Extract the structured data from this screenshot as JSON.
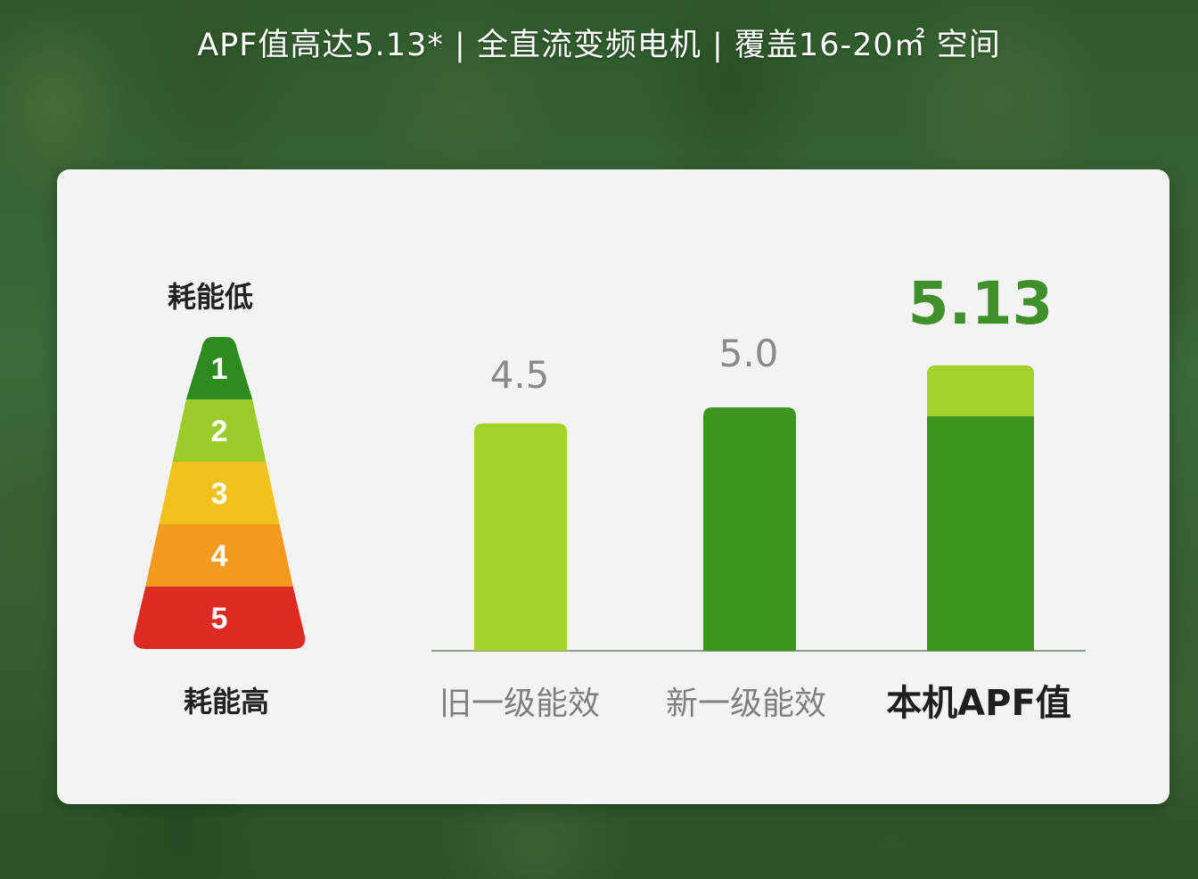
{
  "headline": "APF值高达5.13* | 全直流变频电机 | 覆盖16-20㎡ 空间",
  "pyramid": {
    "top_label": "耗能低",
    "bottom_label": "耗能高",
    "levels": [
      {
        "label": "1",
        "color": "#2e8b1e"
      },
      {
        "label": "2",
        "color": "#9ccc2a"
      },
      {
        "label": "3",
        "color": "#f0c21b"
      },
      {
        "label": "4",
        "color": "#f39a1e"
      },
      {
        "label": "5",
        "color": "#dd2a22"
      }
    ]
  },
  "chart_data": {
    "type": "bar",
    "categories": [
      "旧一级能效",
      "新一级能效",
      "本机APF值"
    ],
    "values": [
      4.5,
      5.0,
      5.13
    ],
    "value_labels": [
      "4.5",
      "5.0",
      "5.13"
    ],
    "bar_colors": [
      "#a4d12c",
      "#3d941f",
      "#3d941f"
    ],
    "highlight_color": "#a4d12c",
    "highlight_segment": {
      "from": 5.0,
      "to": 5.13
    },
    "ylim": [
      0,
      5.13
    ],
    "title": "",
    "xlabel": "",
    "ylabel": "",
    "grid": false
  }
}
